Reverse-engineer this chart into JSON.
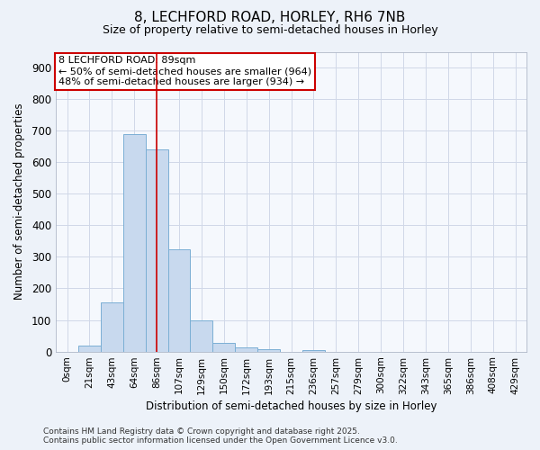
{
  "title": "8, LECHFORD ROAD, HORLEY, RH6 7NB",
  "subtitle": "Size of property relative to semi-detached houses in Horley",
  "xlabel": "Distribution of semi-detached houses by size in Horley",
  "ylabel": "Number of semi-detached properties",
  "bar_labels": [
    "0sqm",
    "21sqm",
    "43sqm",
    "64sqm",
    "86sqm",
    "107sqm",
    "129sqm",
    "150sqm",
    "172sqm",
    "193sqm",
    "215sqm",
    "236sqm",
    "257sqm",
    "279sqm",
    "300sqm",
    "322sqm",
    "343sqm",
    "365sqm",
    "386sqm",
    "408sqm",
    "429sqm"
  ],
  "bar_values": [
    0,
    18,
    155,
    690,
    640,
    325,
    100,
    28,
    12,
    6,
    0,
    5,
    0,
    0,
    0,
    0,
    0,
    0,
    0,
    0,
    0
  ],
  "bar_color": "#c8d9ee",
  "bar_edge_color": "#7bafd4",
  "figure_bg": "#edf2f9",
  "plot_bg": "#f5f8fd",
  "grid_color": "#d0d8e8",
  "vline_x": 4,
  "vline_color": "#cc0000",
  "annotation_line1": "8 LECHFORD ROAD: 89sqm",
  "annotation_line2": "← 50% of semi-detached houses are smaller (964)",
  "annotation_line3": "48% of semi-detached houses are larger (934) →",
  "annotation_box_color": "#ffffff",
  "annotation_box_edge": "#cc0000",
  "ylim": [
    0,
    950
  ],
  "yticks": [
    0,
    100,
    200,
    300,
    400,
    500,
    600,
    700,
    800,
    900
  ],
  "footnote": "Contains HM Land Registry data © Crown copyright and database right 2025.\nContains public sector information licensed under the Open Government Licence v3.0."
}
